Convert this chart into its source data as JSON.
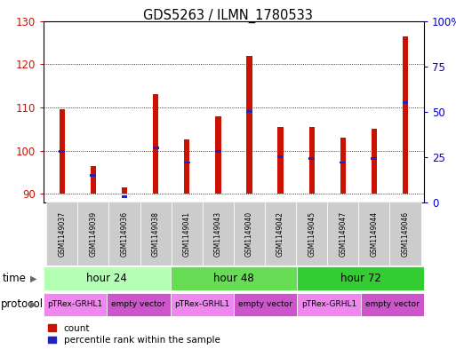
{
  "title": "GDS5263 / ILMN_1780533",
  "samples": [
    "GSM1149037",
    "GSM1149039",
    "GSM1149036",
    "GSM1149038",
    "GSM1149041",
    "GSM1149043",
    "GSM1149040",
    "GSM1149042",
    "GSM1149045",
    "GSM1149047",
    "GSM1149044",
    "GSM1149046"
  ],
  "red_values": [
    109.5,
    96.5,
    91.5,
    113.0,
    102.5,
    108.0,
    122.0,
    105.5,
    105.5,
    103.0,
    105.0,
    126.5
  ],
  "blue_values_pct": [
    28,
    15,
    3,
    30,
    22,
    28,
    50,
    25,
    24,
    22,
    24,
    55
  ],
  "ylim_left": [
    88,
    130
  ],
  "ylim_right": [
    0,
    100
  ],
  "yticks_left": [
    90,
    100,
    110,
    120,
    130
  ],
  "yticks_right": [
    0,
    25,
    50,
    75,
    100
  ],
  "ybase": 90,
  "time_groups": [
    {
      "label": "hour 24",
      "start": 0,
      "end": 4,
      "color": "#b3ffb3"
    },
    {
      "label": "hour 48",
      "start": 4,
      "end": 8,
      "color": "#66dd55"
    },
    {
      "label": "hour 72",
      "start": 8,
      "end": 12,
      "color": "#33cc33"
    }
  ],
  "protocol_groups": [
    {
      "label": "pTRex-GRHL1",
      "start": 0,
      "end": 2,
      "color": "#ee88ee"
    },
    {
      "label": "empty vector",
      "start": 2,
      "end": 4,
      "color": "#cc55cc"
    },
    {
      "label": "pTRex-GRHL1",
      "start": 4,
      "end": 6,
      "color": "#ee88ee"
    },
    {
      "label": "empty vector",
      "start": 6,
      "end": 8,
      "color": "#cc55cc"
    },
    {
      "label": "pTRex-GRHL1",
      "start": 8,
      "end": 10,
      "color": "#ee88ee"
    },
    {
      "label": "empty vector",
      "start": 10,
      "end": 12,
      "color": "#cc55cc"
    }
  ],
  "bar_color": "#cc1100",
  "blue_color": "#2222bb",
  "left_axis_color": "#cc1100",
  "right_axis_color": "#0000cc",
  "bar_width": 0.18,
  "sample_label_bg": "#cccccc"
}
